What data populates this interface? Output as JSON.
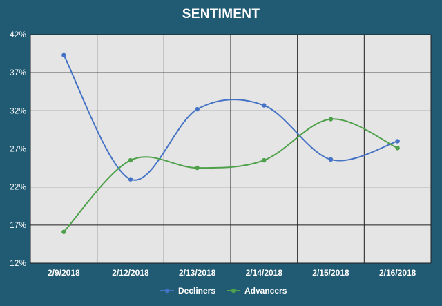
{
  "chart_data": {
    "type": "line",
    "title": "SENTIMENT",
    "categories": [
      "2/9/2018",
      "2/12/2018",
      "2/13/2018",
      "2/14/2018",
      "2/15/2018",
      "2/16/2018"
    ],
    "yticks": [
      "12%",
      "17%",
      "22%",
      "27%",
      "32%",
      "37%",
      "42%"
    ],
    "ylim": [
      12,
      42
    ],
    "grid": true,
    "legend": "bottom",
    "series": [
      {
        "name": "Decliners",
        "color": "#4472c4",
        "values": [
          39.3,
          23.0,
          32.2,
          32.7,
          25.6,
          28.0
        ]
      },
      {
        "name": "Advancers",
        "color": "#4ea04a",
        "values": [
          16.1,
          25.5,
          24.5,
          25.5,
          30.9,
          27.1
        ]
      }
    ]
  },
  "colors": {
    "background": "#215a73",
    "plot_area": "#e5e5e5",
    "grid": "#1f1f1f"
  }
}
